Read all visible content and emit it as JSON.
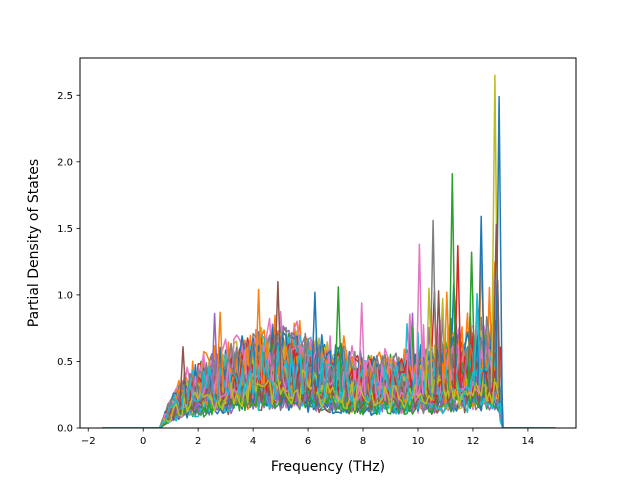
{
  "chart_data": {
    "type": "line",
    "title": "",
    "xlabel": "Frequency (THz)",
    "ylabel": "Partial Density of States",
    "xlim": [
      -2.3,
      15.75
    ],
    "ylim": [
      0,
      2.78
    ],
    "xticks": [
      -2,
      0,
      2,
      4,
      6,
      8,
      10,
      12,
      14
    ],
    "xtick_labels": [
      "−2",
      "0",
      "2",
      "4",
      "6",
      "8",
      "10",
      "12",
      "14"
    ],
    "yticks": [
      0.0,
      0.5,
      1.0,
      1.5,
      2.0,
      2.5
    ],
    "ytick_labels": [
      "0.0",
      "0.5",
      "1.0",
      "1.5",
      "2.0",
      "2.5"
    ],
    "grid": false,
    "legend": "none",
    "x_sampling": {
      "start": -1.5,
      "stop": 15.0,
      "step": 0.1
    },
    "band_limits": {
      "onset": 0.6,
      "cutoff": 13.05
    },
    "series_colors": [
      "#1f77b4",
      "#ff7f0e",
      "#2ca02c",
      "#d62728",
      "#9467bd",
      "#8c564b",
      "#e377c2",
      "#7f7f7f",
      "#bcbd22",
      "#17becf"
    ],
    "series_count": 60,
    "envelope": [
      {
        "x": -1.5,
        "y": 0.0
      },
      {
        "x": 0.6,
        "y": 0.0
      },
      {
        "x": 1.0,
        "y": 0.15
      },
      {
        "x": 1.5,
        "y": 0.25
      },
      {
        "x": 2.5,
        "y": 0.35
      },
      {
        "x": 4.0,
        "y": 0.45
      },
      {
        "x": 5.0,
        "y": 0.5
      },
      {
        "x": 6.0,
        "y": 0.45
      },
      {
        "x": 7.0,
        "y": 0.4
      },
      {
        "x": 8.0,
        "y": 0.35
      },
      {
        "x": 9.0,
        "y": 0.35
      },
      {
        "x": 10.0,
        "y": 0.35
      },
      {
        "x": 11.0,
        "y": 0.4
      },
      {
        "x": 12.0,
        "y": 0.45
      },
      {
        "x": 12.9,
        "y": 0.5
      },
      {
        "x": 13.05,
        "y": 0.0
      },
      {
        "x": 15.0,
        "y": 0.0
      }
    ],
    "peaks": [
      {
        "x": 12.8,
        "y": 2.65,
        "color": "#bcbd22"
      },
      {
        "x": 12.95,
        "y": 2.49,
        "color": "#1f77b4"
      },
      {
        "x": 11.25,
        "y": 1.91,
        "color": "#2ca02c"
      },
      {
        "x": 12.3,
        "y": 1.59,
        "color": "#1f77b4"
      },
      {
        "x": 10.55,
        "y": 1.56,
        "color": "#7f7f7f"
      },
      {
        "x": 12.85,
        "y": 1.53,
        "color": "#8c564b"
      },
      {
        "x": 10.05,
        "y": 1.38,
        "color": "#e377c2"
      },
      {
        "x": 11.95,
        "y": 1.32,
        "color": "#2ca02c"
      },
      {
        "x": 11.45,
        "y": 1.37,
        "color": "#d62728"
      },
      {
        "x": 4.9,
        "y": 1.1,
        "color": "#8c564b"
      },
      {
        "x": 4.2,
        "y": 1.04,
        "color": "#ff7f0e"
      },
      {
        "x": 7.1,
        "y": 1.06,
        "color": "#2ca02c"
      },
      {
        "x": 6.25,
        "y": 1.02,
        "color": "#1f77b4"
      },
      {
        "x": 7.95,
        "y": 0.94,
        "color": "#e377c2"
      },
      {
        "x": 10.75,
        "y": 1.03,
        "color": "#8c564b"
      },
      {
        "x": 11.05,
        "y": 1.02,
        "color": "#ff7f0e"
      },
      {
        "x": 12.15,
        "y": 1.01,
        "color": "#17becf"
      },
      {
        "x": 10.4,
        "y": 1.05,
        "color": "#bcbd22"
      },
      {
        "x": 1.45,
        "y": 0.61,
        "color": "#8c564b"
      },
      {
        "x": 2.6,
        "y": 0.86,
        "color": "#9467bd"
      },
      {
        "x": 2.8,
        "y": 0.87,
        "color": "#ff7f0e"
      }
    ]
  }
}
